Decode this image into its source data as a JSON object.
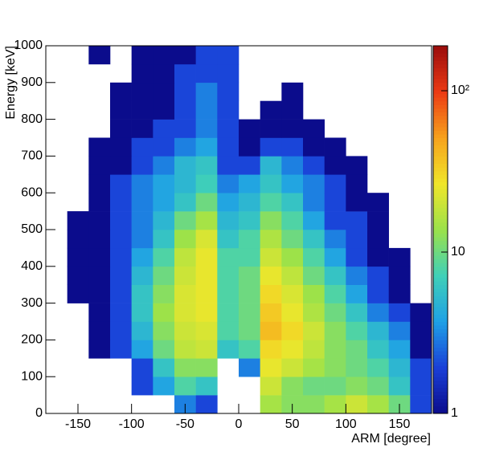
{
  "chart_data": {
    "type": "heatmap",
    "x_label": "ARM [degree]",
    "y_label": "Energy [keV]",
    "xlim": [
      -180,
      180
    ],
    "xticks": [
      -150,
      -100,
      -50,
      0,
      50,
      100,
      150
    ],
    "ylim": [
      0,
      1000
    ],
    "yticks": [
      0,
      100,
      200,
      300,
      400,
      500,
      600,
      700,
      800,
      900,
      1000
    ],
    "zlim": [
      1,
      190
    ],
    "zlog": true,
    "zticks": [
      1,
      10,
      {
        "value": 100,
        "label": "10²"
      }
    ],
    "palette": [
      "#0b0c8c",
      "#1a3fd8",
      "#1ea0e6",
      "#3fd0b8",
      "#9be24a",
      "#f0e62a",
      "#f7a21c",
      "#ec3a14",
      "#9a0c0c"
    ],
    "xbins": [
      -180,
      -160,
      -140,
      -120,
      -100,
      -80,
      -60,
      -40,
      -20,
      0,
      20,
      40,
      60,
      80,
      100,
      120,
      140,
      160,
      180
    ],
    "ybins": [
      0,
      50,
      100,
      150,
      200,
      250,
      300,
      350,
      400,
      450,
      500,
      550,
      600,
      650,
      700,
      750,
      800,
      850,
      900,
      950,
      1000
    ],
    "z": [
      [
        0,
        0,
        0,
        0,
        0,
        0,
        3,
        2,
        0,
        0,
        15,
        12,
        12,
        15,
        20,
        15,
        10,
        2
      ],
      [
        0,
        0,
        0,
        0,
        2,
        4,
        8,
        6,
        0,
        0,
        20,
        12,
        10,
        10,
        12,
        10,
        6,
        2
      ],
      [
        0,
        0,
        0,
        0,
        2,
        6,
        12,
        12,
        0,
        3,
        25,
        20,
        15,
        12,
        10,
        8,
        5,
        2
      ],
      [
        0,
        0,
        1,
        2,
        4,
        10,
        18,
        20,
        6,
        8,
        30,
        25,
        18,
        12,
        10,
        6,
        4,
        1
      ],
      [
        0,
        0,
        1,
        2,
        5,
        12,
        20,
        22,
        8,
        10,
        40,
        30,
        20,
        12,
        8,
        5,
        3,
        1
      ],
      [
        0,
        0,
        1,
        2,
        6,
        14,
        22,
        25,
        8,
        10,
        35,
        25,
        16,
        10,
        6,
        3,
        2,
        1
      ],
      [
        0,
        1,
        1,
        2,
        6,
        12,
        22,
        25,
        8,
        10,
        30,
        22,
        14,
        8,
        4,
        2,
        1,
        0
      ],
      [
        0,
        1,
        1,
        2,
        5,
        10,
        20,
        25,
        8,
        10,
        25,
        18,
        10,
        6,
        3,
        2,
        1,
        0
      ],
      [
        0,
        1,
        1,
        2,
        4,
        8,
        18,
        25,
        8,
        8,
        20,
        14,
        8,
        4,
        2,
        1,
        1,
        0
      ],
      [
        0,
        1,
        1,
        2,
        3,
        6,
        14,
        22,
        6,
        8,
        16,
        10,
        6,
        3,
        2,
        1,
        0,
        0
      ],
      [
        0,
        1,
        1,
        2,
        3,
        5,
        10,
        15,
        5,
        6,
        12,
        8,
        4,
        2,
        2,
        1,
        0,
        0
      ],
      [
        0,
        0,
        1,
        2,
        3,
        4,
        6,
        10,
        4,
        5,
        8,
        6,
        3,
        2,
        1,
        1,
        0,
        0
      ],
      [
        0,
        0,
        1,
        2,
        3,
        4,
        5,
        7,
        3,
        4,
        6,
        4,
        3,
        2,
        1,
        0,
        0,
        0
      ],
      [
        0,
        0,
        1,
        1,
        2,
        3,
        5,
        6,
        2,
        2,
        5,
        3,
        2,
        1,
        1,
        0,
        0,
        0
      ],
      [
        0,
        0,
        1,
        1,
        2,
        2,
        3,
        4,
        2,
        1,
        2,
        2,
        1,
        1,
        0,
        0,
        0,
        0
      ],
      [
        0,
        0,
        0,
        1,
        1,
        2,
        2,
        3,
        2,
        1,
        1,
        1,
        1,
        0,
        0,
        0,
        0,
        0
      ],
      [
        0,
        0,
        0,
        1,
        1,
        1,
        2,
        3,
        2,
        0,
        1,
        1,
        0,
        0,
        0,
        0,
        0,
        0
      ],
      [
        0,
        0,
        0,
        1,
        1,
        1,
        2,
        3,
        2,
        0,
        0,
        1,
        0,
        0,
        0,
        0,
        0,
        0
      ],
      [
        0,
        0,
        0,
        0,
        1,
        1,
        2,
        2,
        2,
        0,
        0,
        0,
        0,
        0,
        0,
        0,
        0,
        0
      ],
      [
        0,
        0,
        1,
        0,
        1,
        1,
        1,
        2,
        2,
        0,
        0,
        0,
        0,
        0,
        0,
        0,
        0,
        0
      ]
    ]
  }
}
